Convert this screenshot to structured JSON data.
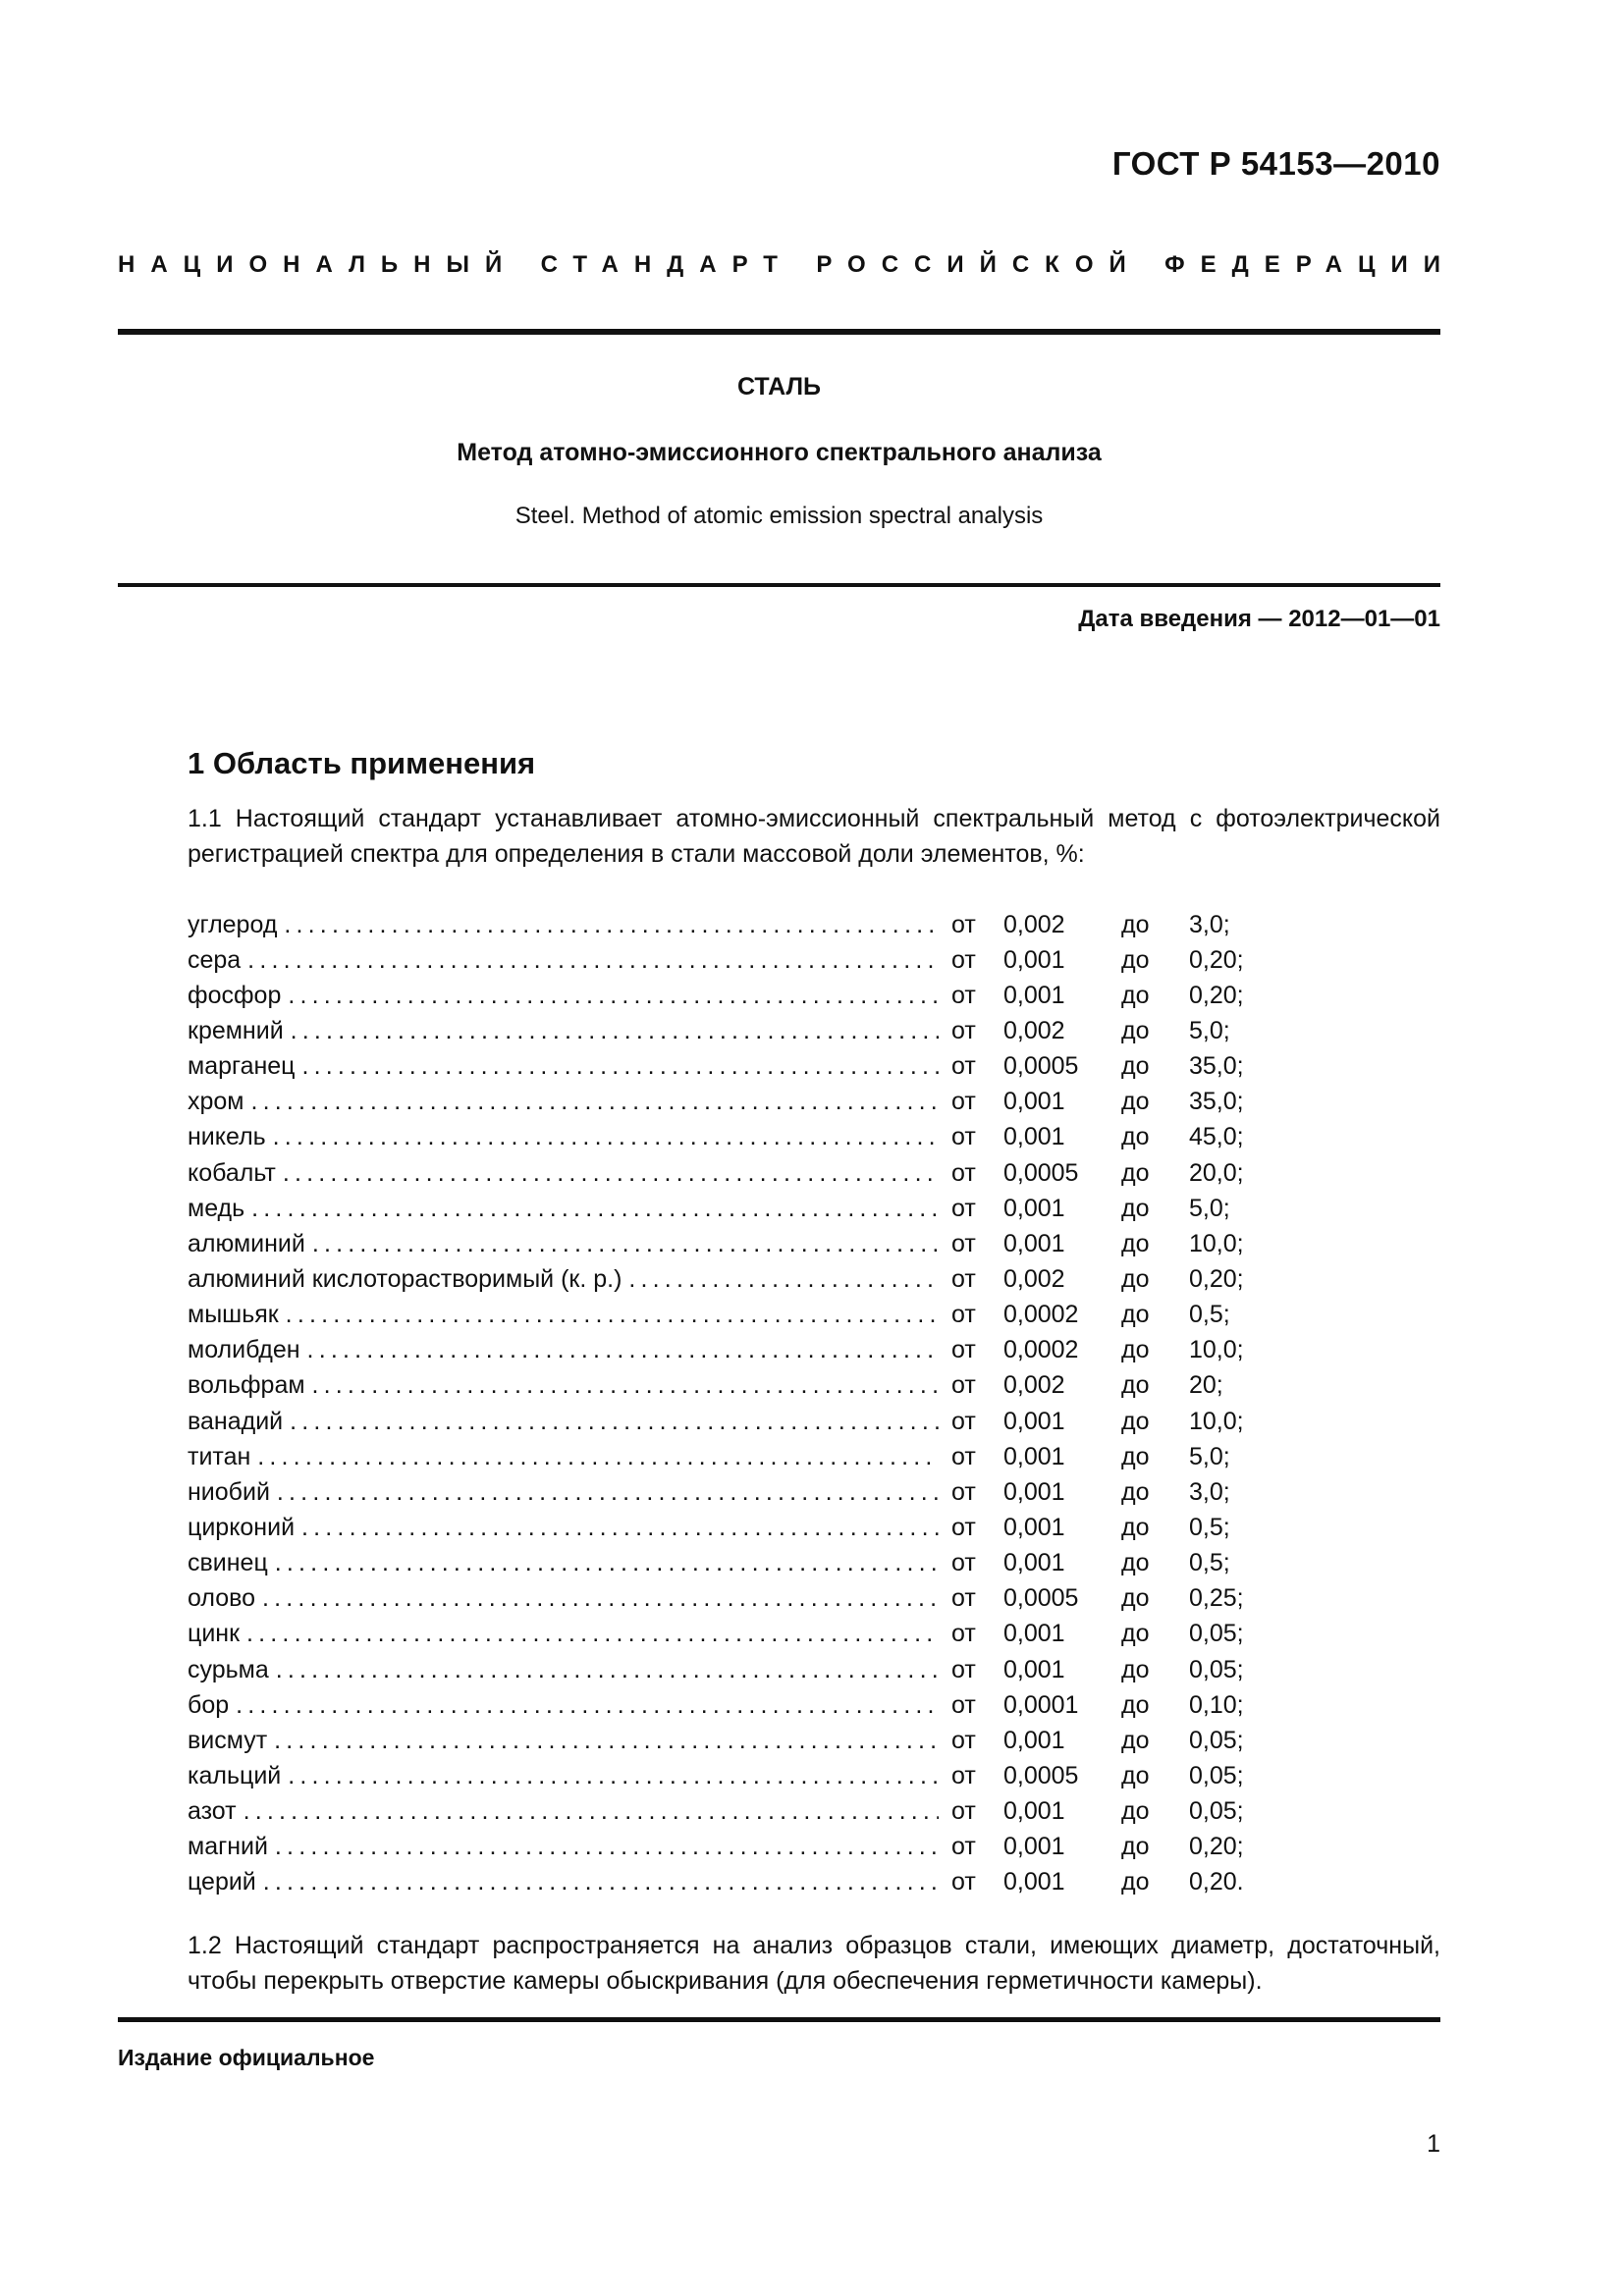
{
  "header": {
    "standard_number": "ГОСТ Р 54153—2010",
    "national_standard_words": [
      "НАЦИОНАЛЬНЫЙ",
      "СТАНДАРТ",
      "РОССИЙСКОЙ",
      "ФЕДЕРАЦИИ"
    ]
  },
  "title": {
    "main": "СТАЛЬ",
    "subtitle": "Метод атомно-эмиссионного спектрального анализа",
    "english": "Steel. Method of atomic emission spectral analysis",
    "date": "Дата введения — 2012—01—01"
  },
  "section1": {
    "heading": "1 Область применения",
    "para_1_1": "1.1 Настоящий стандарт устанавливает атомно-эмиссионный спектральный метод с фотоэлек­трической регистрацией спектра для определения в стали массовой доли элементов, %:",
    "ranges": [
      {
        "name": "углерод",
        "from": "от",
        "min": "0,002",
        "to": "до",
        "max": "3,0;"
      },
      {
        "name": "сера",
        "from": "от",
        "min": "0,001",
        "to": "до",
        "max": "0,20;"
      },
      {
        "name": "фосфор",
        "from": "от",
        "min": "0,001",
        "to": "до",
        "max": "0,20;"
      },
      {
        "name": "кремний",
        "from": "от",
        "min": "0,002",
        "to": "до",
        "max": "5,0;"
      },
      {
        "name": "марганец",
        "from": "от",
        "min": "0,0005",
        "to": "до",
        "max": "35,0;"
      },
      {
        "name": "хром",
        "from": "от",
        "min": "0,001",
        "to": "до",
        "max": "35,0;"
      },
      {
        "name": "никель",
        "from": "от",
        "min": "0,001",
        "to": "до",
        "max": "45,0;"
      },
      {
        "name": "кобальт",
        "from": "от",
        "min": "0,0005",
        "to": "до",
        "max": "20,0;"
      },
      {
        "name": "медь",
        "from": "от",
        "min": "0,001",
        "to": "до",
        "max": "5,0;"
      },
      {
        "name": "алюминий",
        "from": "от",
        "min": "0,001",
        "to": "до",
        "max": "10,0;"
      },
      {
        "name": "алюминий кислоторастворимый (к. р.)",
        "from": "от",
        "min": "0,002",
        "to": "до",
        "max": "0,20;"
      },
      {
        "name": "мышьяк",
        "from": "от",
        "min": "0,0002",
        "to": "до",
        "max": "0,5;"
      },
      {
        "name": "молибден",
        "from": "от",
        "min": "0,0002",
        "to": "до",
        "max": "10,0;"
      },
      {
        "name": "вольфрам",
        "from": "от",
        "min": "0,002",
        "to": "до",
        "max": "20;"
      },
      {
        "name": "ванадий",
        "from": "от",
        "min": "0,001",
        "to": "до",
        "max": "10,0;"
      },
      {
        "name": "титан",
        "from": "от",
        "min": "0,001",
        "to": "до",
        "max": "5,0;"
      },
      {
        "name": "ниобий",
        "from": "от",
        "min": "0,001",
        "to": "до",
        "max": "3,0;"
      },
      {
        "name": "цирконий",
        "from": "от",
        "min": "0,001",
        "to": "до",
        "max": "0,5;"
      },
      {
        "name": "свинец",
        "from": "от",
        "min": "0,001",
        "to": "до",
        "max": "0,5;"
      },
      {
        "name": "олово",
        "from": "от",
        "min": "0,0005",
        "to": "до",
        "max": "0,25;"
      },
      {
        "name": "цинк",
        "from": "от",
        "min": "0,001",
        "to": "до",
        "max": "0,05;"
      },
      {
        "name": "сурьма",
        "from": "от",
        "min": "0,001",
        "to": "до",
        "max": "0,05;"
      },
      {
        "name": "бор",
        "from": "от",
        "min": "0,0001",
        "to": "до",
        "max": "0,10;"
      },
      {
        "name": "висмут",
        "from": "от",
        "min": "0,001",
        "to": "до",
        "max": "0,05;"
      },
      {
        "name": "кальций",
        "from": "от",
        "min": "0,0005",
        "to": "до",
        "max": "0,05;"
      },
      {
        "name": "азот",
        "from": "от",
        "min": "0,001",
        "to": "до",
        "max": "0,05;"
      },
      {
        "name": "магний",
        "from": "от",
        "min": "0,001",
        "to": "до",
        "max": "0,20;"
      },
      {
        "name": "церий",
        "from": "от",
        "min": "0,001",
        "to": "до",
        "max": "0,20."
      }
    ],
    "para_1_2": "1.2 Настоящий стандарт распространяется на анализ образцов стали, имеющих диаметр, доста­точный, чтобы перекрыть отверстие камеры обыскривания (для обеспечения герметичности камеры)."
  },
  "footer": {
    "official_edition": "Издание официальное",
    "page_number": "1"
  }
}
